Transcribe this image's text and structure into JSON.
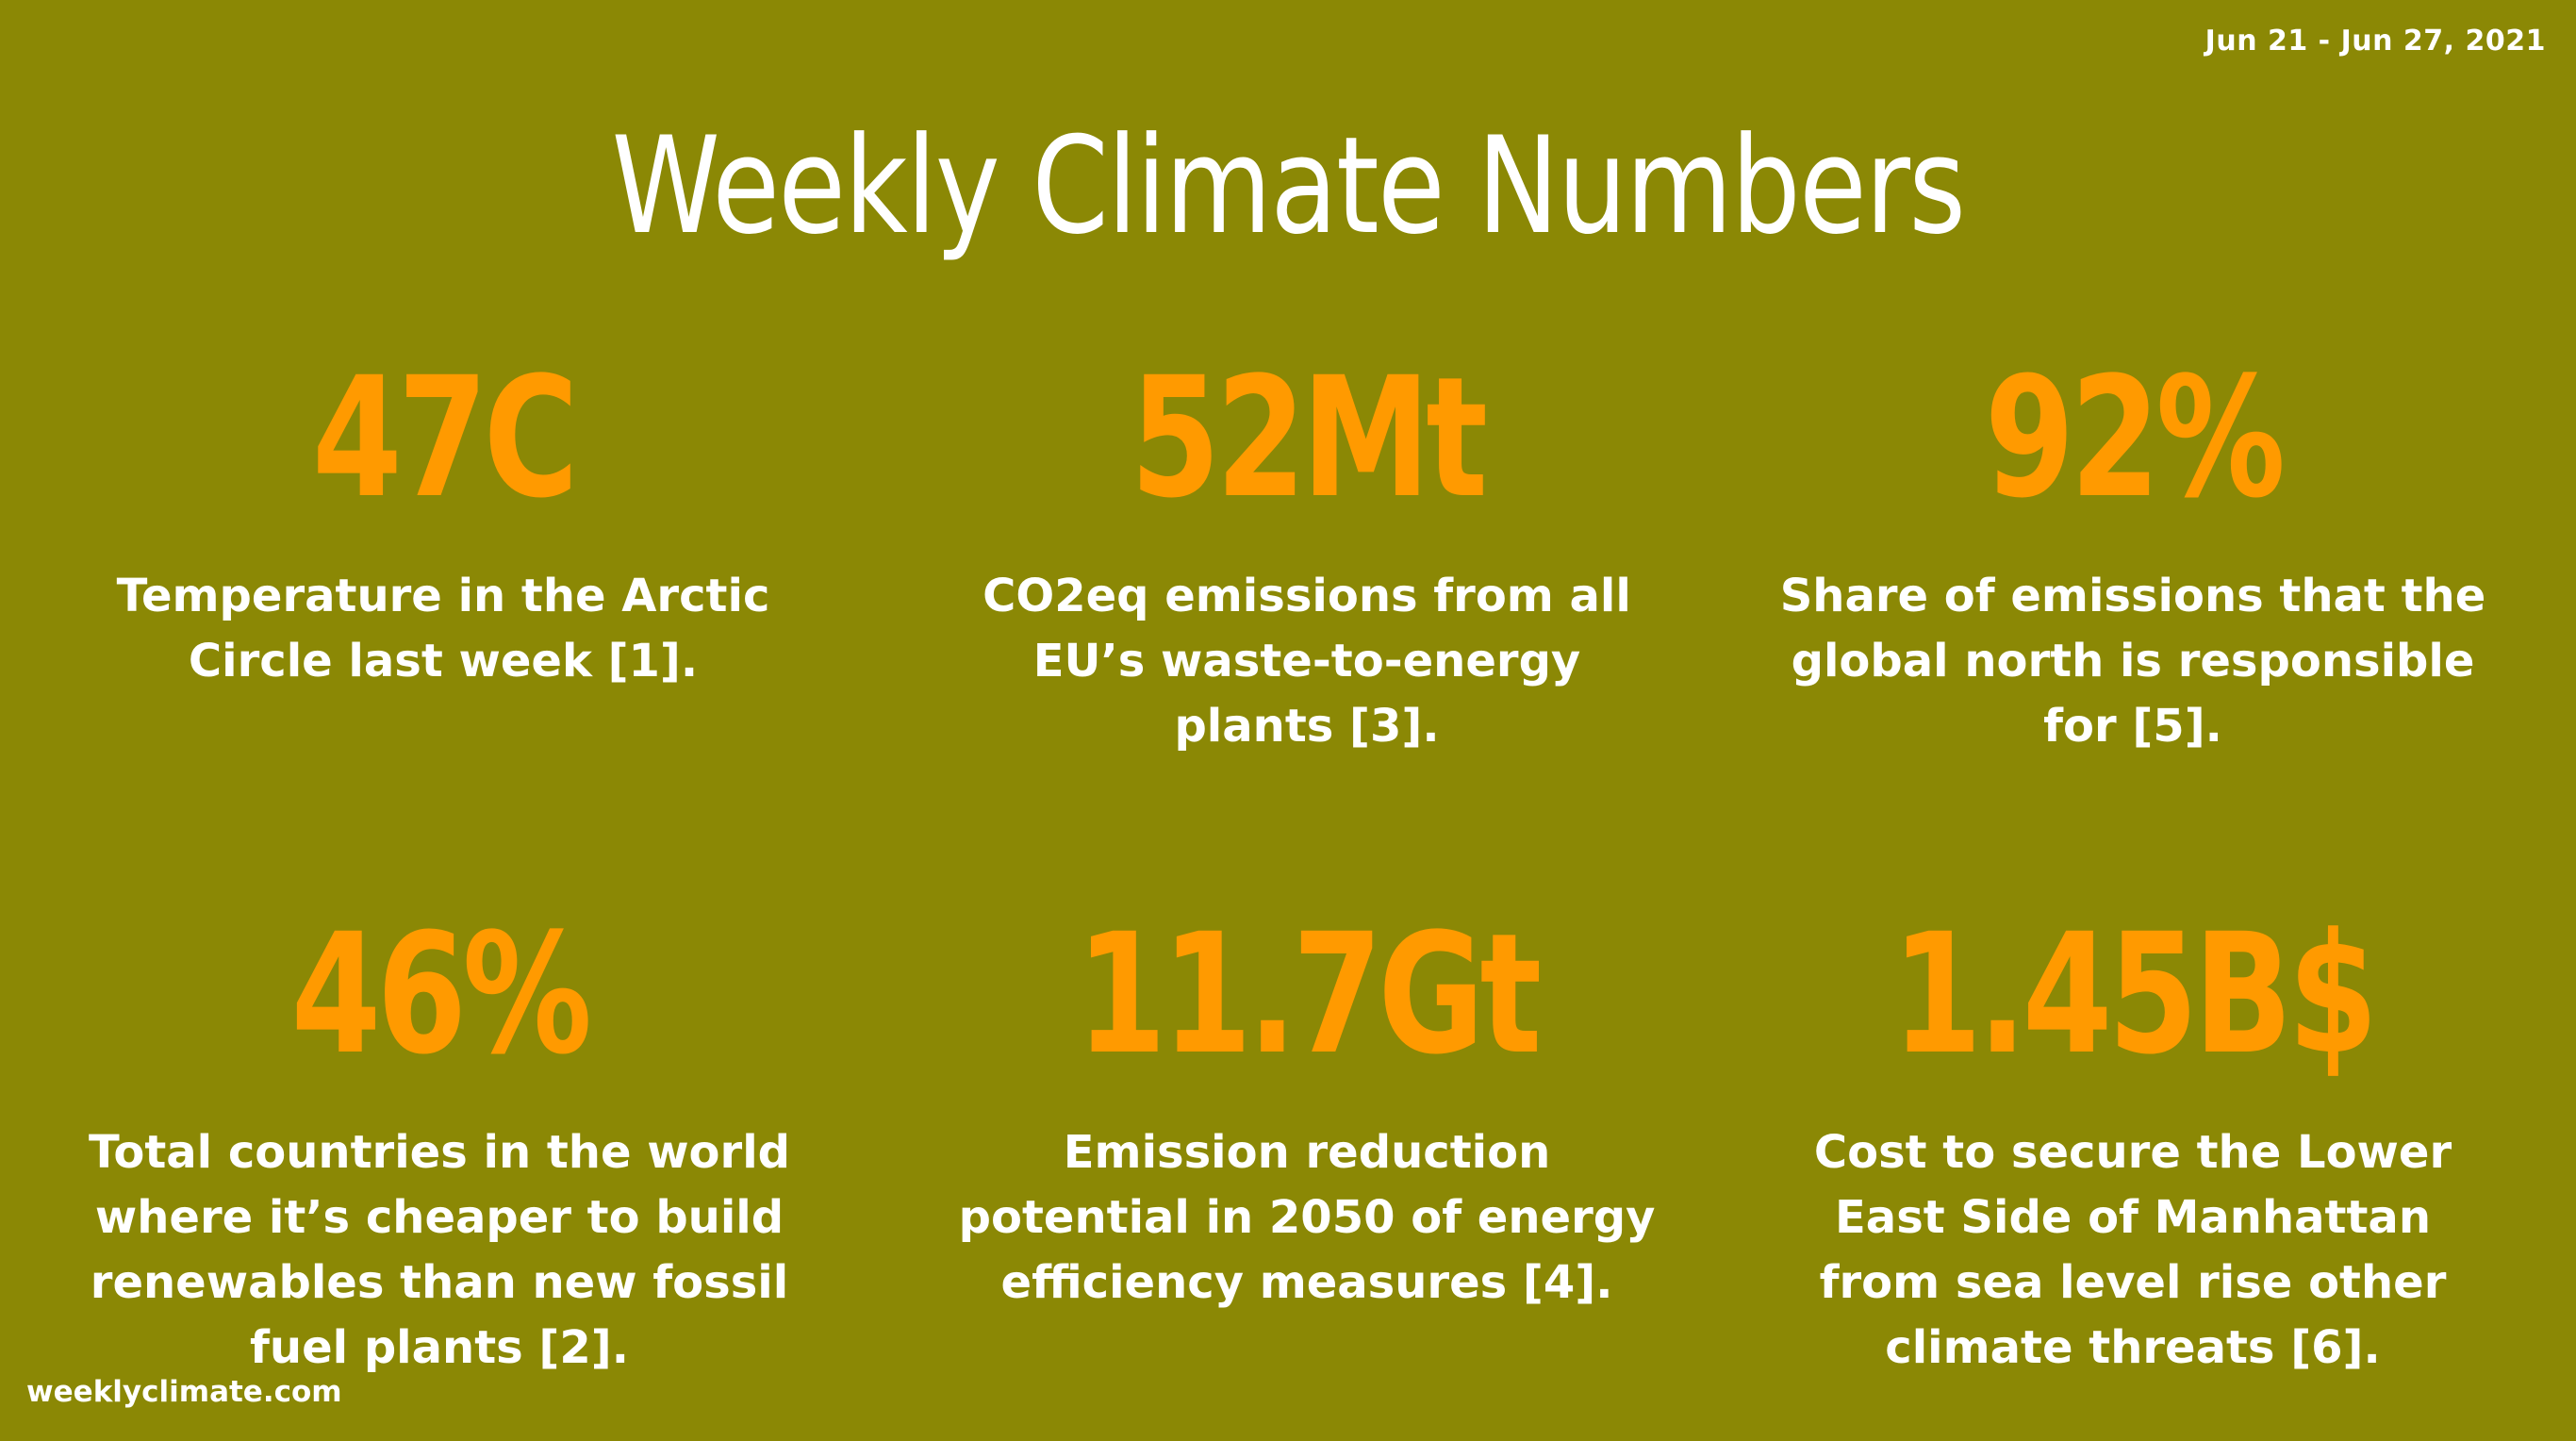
{
  "header": {
    "date_range": "Jun 21 - Jun 27, 2021",
    "title": "Weekly Climate Numbers"
  },
  "colors": {
    "background": "#8b8805",
    "stat_value": "#ff9a00",
    "text": "#ffffff"
  },
  "stats": [
    {
      "value": "47C",
      "description": "Temperature in the Arctic Circle last week [1]."
    },
    {
      "value": "52Mt",
      "description": "CO2eq emissions from all EU’s waste-to-energy plants [3]."
    },
    {
      "value": "92%",
      "description": "Share of emissions that the global north is responsible for [5]."
    },
    {
      "value": "46%",
      "description": "Total countries in the world where it’s cheaper to build renewables than new fossil fuel plants [2]."
    },
    {
      "value": "11.7Gt",
      "description": "Emission reduction potential in 2050 of energy efficiency measures [4]."
    },
    {
      "value": "1.45B$",
      "description": "Cost to secure the Lower East Side of Manhattan from sea level rise other climate threats [6]."
    }
  ],
  "footer": {
    "website": "weeklyclimate.com"
  }
}
